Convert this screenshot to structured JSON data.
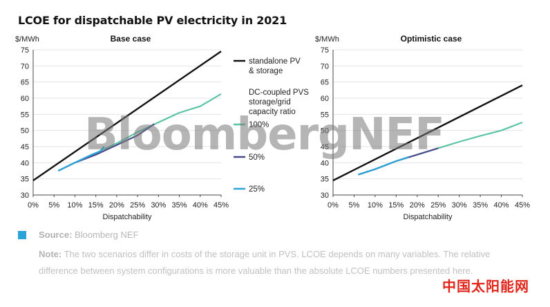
{
  "title": "LCOE for dispatchable PV electricity in 2021",
  "watermark": "BloombergNEF",
  "source_label": "Source:",
  "source_text": "Bloomberg NEF",
  "note_label": "Note:",
  "note_text": "The two scenarios differ in costs of the storage unit in PVS. LCOE depends on many variables. The relative difference between system configurations is more valuable than the absolute LCOE numbers presented here.",
  "brand_cn": "中国太阳能网",
  "colors": {
    "standalone": "#111111",
    "dc100": "#5cc4a6",
    "dc50": "#4a4a8c",
    "dc25": "#2aa3d9",
    "source_square": "#2aa3d9"
  },
  "legend": {
    "standalone": "standalone PV & storage",
    "group_title": "DC-coupled PVS storage/grid capacity ratio",
    "dc100": "100%",
    "dc50": "50%",
    "dc25": "25%"
  },
  "chart_data": [
    {
      "type": "line",
      "title": "Base case",
      "ylabel": "$/MWh",
      "xlabel": "Dispatchability",
      "xlim": [
        0,
        45
      ],
      "ylim": [
        30,
        75
      ],
      "xticks": [
        "0%",
        "5%",
        "10%",
        "15%",
        "20%",
        "25%",
        "30%",
        "35%",
        "40%",
        "45%"
      ],
      "yticks": [
        "30",
        "35",
        "40",
        "45",
        "50",
        "55",
        "60",
        "65",
        "70",
        "75"
      ],
      "series": [
        {
          "name": "standalone PV & storage",
          "x": [
            0,
            45
          ],
          "y": [
            34.5,
            74.5
          ]
        },
        {
          "name": "100%",
          "x": [
            6,
            10,
            15,
            20,
            25,
            30,
            35,
            40,
            45
          ],
          "y": [
            37.5,
            40,
            43,
            46,
            49.5,
            52.5,
            55.5,
            57.5,
            61.3
          ]
        },
        {
          "name": "50%",
          "x": [
            6,
            10,
            15,
            20,
            25,
            29
          ],
          "y": [
            37.5,
            40,
            42.5,
            45.5,
            48.5,
            52
          ]
        },
        {
          "name": "25%",
          "x": [
            6,
            10,
            14,
            16,
            17
          ],
          "y": [
            37.5,
            40,
            42.5,
            43.5,
            45
          ]
        }
      ]
    },
    {
      "type": "line",
      "title": "Optimistic case",
      "ylabel": "$/MWh",
      "xlabel": "Dispatchability",
      "xlim": [
        0,
        45
      ],
      "ylim": [
        30,
        75
      ],
      "xticks": [
        "0%",
        "5%",
        "10%",
        "15%",
        "20%",
        "25%",
        "30%",
        "35%",
        "40%",
        "45%"
      ],
      "yticks": [
        "30",
        "35",
        "40",
        "45",
        "50",
        "55",
        "60",
        "65",
        "70",
        "75"
      ],
      "series": [
        {
          "name": "standalone PV & storage",
          "x": [
            0,
            45
          ],
          "y": [
            34.5,
            64
          ]
        },
        {
          "name": "100%",
          "x": [
            6,
            10,
            15,
            20,
            25,
            30,
            35,
            40,
            45
          ],
          "y": [
            36.3,
            38,
            40.5,
            42.5,
            44.5,
            46.5,
            48.3,
            50,
            52.5
          ]
        },
        {
          "name": "50%",
          "x": [
            6,
            10,
            15,
            20,
            25
          ],
          "y": [
            36.3,
            38,
            40.5,
            42.5,
            44.5
          ]
        },
        {
          "name": "25%",
          "x": [
            6,
            10,
            15,
            18
          ],
          "y": [
            36.3,
            38,
            40.5,
            41.8
          ]
        }
      ]
    }
  ]
}
